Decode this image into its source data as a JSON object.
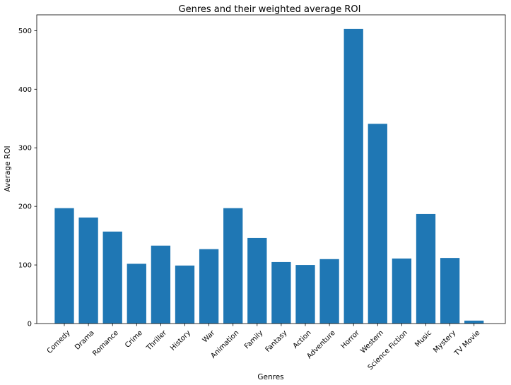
{
  "chart_data": {
    "type": "bar",
    "title": "Genres and their weighted average ROI",
    "xlabel": "Genres",
    "ylabel": "Average ROI",
    "categories": [
      "Comedy",
      "Drama",
      "Romance",
      "Crime",
      "Thriller",
      "History",
      "War",
      "Animation",
      "Family",
      "Fantasy",
      "Action",
      "Adventure",
      "Horror",
      "Western",
      "Science Fiction",
      "Music",
      "Mystery",
      "TV Movie"
    ],
    "values": [
      197,
      181,
      157,
      102,
      133,
      99,
      127,
      197,
      146,
      105,
      100,
      110,
      503,
      341,
      111,
      187,
      112,
      5
    ],
    "ylim": [
      0,
      527
    ],
    "yticks": [
      0,
      100,
      200,
      300,
      400,
      500
    ],
    "grid": false,
    "bar_color": "#1f77b4"
  }
}
